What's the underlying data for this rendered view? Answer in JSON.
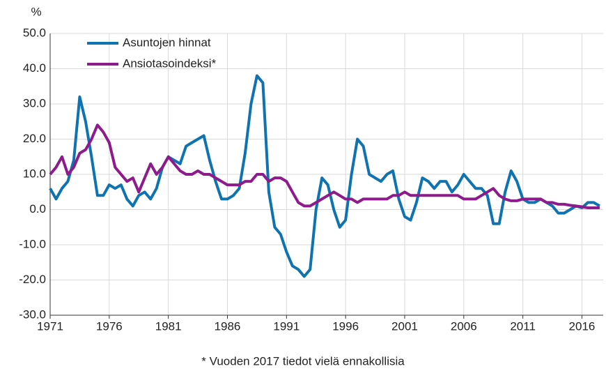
{
  "chart_data": {
    "type": "line",
    "y_label": "%",
    "footnote": "* Vuoden 2017 tiedot vielä ennakollisia",
    "x": [
      1971,
      1971.5,
      1972,
      1972.5,
      1973,
      1973.5,
      1974,
      1974.5,
      1975,
      1975.5,
      1976,
      1976.5,
      1977,
      1977.5,
      1978,
      1978.5,
      1979,
      1979.5,
      1980,
      1980.5,
      1981,
      1981.5,
      1982,
      1982.5,
      1983,
      1983.5,
      1984,
      1984.5,
      1985,
      1985.5,
      1986,
      1986.5,
      1987,
      1987.5,
      1988,
      1988.5,
      1989,
      1989.5,
      1990,
      1990.5,
      1991,
      1991.5,
      1992,
      1992.5,
      1993,
      1993.5,
      1994,
      1994.5,
      1995,
      1995.5,
      1996,
      1996.5,
      1997,
      1997.5,
      1998,
      1998.5,
      1999,
      1999.5,
      2000,
      2000.5,
      2001,
      2001.5,
      2002,
      2002.5,
      2003,
      2003.5,
      2004,
      2004.5,
      2005,
      2005.5,
      2006,
      2006.5,
      2007,
      2007.5,
      2008,
      2008.5,
      2009,
      2009.5,
      2010,
      2010.5,
      2011,
      2011.5,
      2012,
      2012.5,
      2013,
      2013.5,
      2014,
      2014.5,
      2015,
      2015.5,
      2016,
      2016.5,
      2017,
      2017.5
    ],
    "series": [
      {
        "name": "Asuntojen hinnat",
        "color": "#0f73b0",
        "values": [
          6,
          3,
          6,
          8,
          14,
          32,
          25,
          15,
          4,
          4,
          7,
          6,
          7,
          3,
          1,
          4,
          5,
          3,
          6,
          12,
          15,
          14,
          13,
          18,
          19,
          20,
          21,
          14,
          8,
          3,
          3,
          4,
          6,
          16,
          30,
          38,
          36,
          5,
          -5,
          -7,
          -12,
          -16,
          -17,
          -19,
          -17,
          0,
          9,
          7,
          0,
          -5,
          -3,
          10,
          20,
          18,
          10,
          9,
          8,
          10,
          11,
          3,
          -2,
          -3,
          2,
          9,
          8,
          6,
          8,
          8,
          5,
          7,
          10,
          8,
          6,
          6,
          4,
          -4,
          -4,
          5,
          11,
          8,
          3,
          2,
          2,
          3,
          2,
          1,
          -1,
          -1,
          0,
          1,
          0.5,
          2,
          2,
          1
        ]
      },
      {
        "name": "Ansiotasoindeksi*",
        "color": "#8e1b8b",
        "values": [
          10,
          12,
          15,
          10,
          12,
          16,
          17,
          20,
          24,
          22,
          19,
          12,
          10,
          8,
          9,
          5,
          9,
          13,
          10,
          12,
          15,
          13,
          11,
          10,
          10,
          11,
          10,
          10,
          9,
          8,
          7,
          7,
          7,
          8,
          8,
          10,
          10,
          8,
          9,
          9,
          8,
          5,
          2,
          1,
          1,
          2,
          3,
          4,
          5,
          4,
          3,
          3,
          2,
          3,
          3,
          3,
          3,
          3,
          4,
          4,
          5,
          4,
          4,
          4,
          4,
          4,
          4,
          4,
          4,
          4,
          3,
          3,
          3,
          4,
          5,
          6,
          4,
          3,
          2.5,
          2.5,
          3,
          3,
          3,
          3,
          2,
          2,
          1.5,
          1.5,
          1.2,
          1,
          0.8,
          0.5,
          0.5,
          0.5
        ]
      }
    ],
    "xlim": [
      1971,
      2017.8
    ],
    "xticks": [
      1971,
      1976,
      1981,
      1986,
      1991,
      1996,
      2001,
      2006,
      2011,
      2016
    ],
    "ylim": [
      -30,
      50
    ],
    "yticks": [
      {
        "value": -30,
        "label": "-30.0"
      },
      {
        "value": -20,
        "label": "-20.0"
      },
      {
        "value": -10,
        "label": "-10.0"
      },
      {
        "value": 0,
        "label": "0.0"
      },
      {
        "value": 10,
        "label": "10.0"
      },
      {
        "value": 20,
        "label": "20.0"
      },
      {
        "value": 30,
        "label": "30.0"
      },
      {
        "value": 40,
        "label": "40.0"
      },
      {
        "value": 50,
        "label": "50.0"
      }
    ],
    "grid": true,
    "legend": "upper-left"
  }
}
